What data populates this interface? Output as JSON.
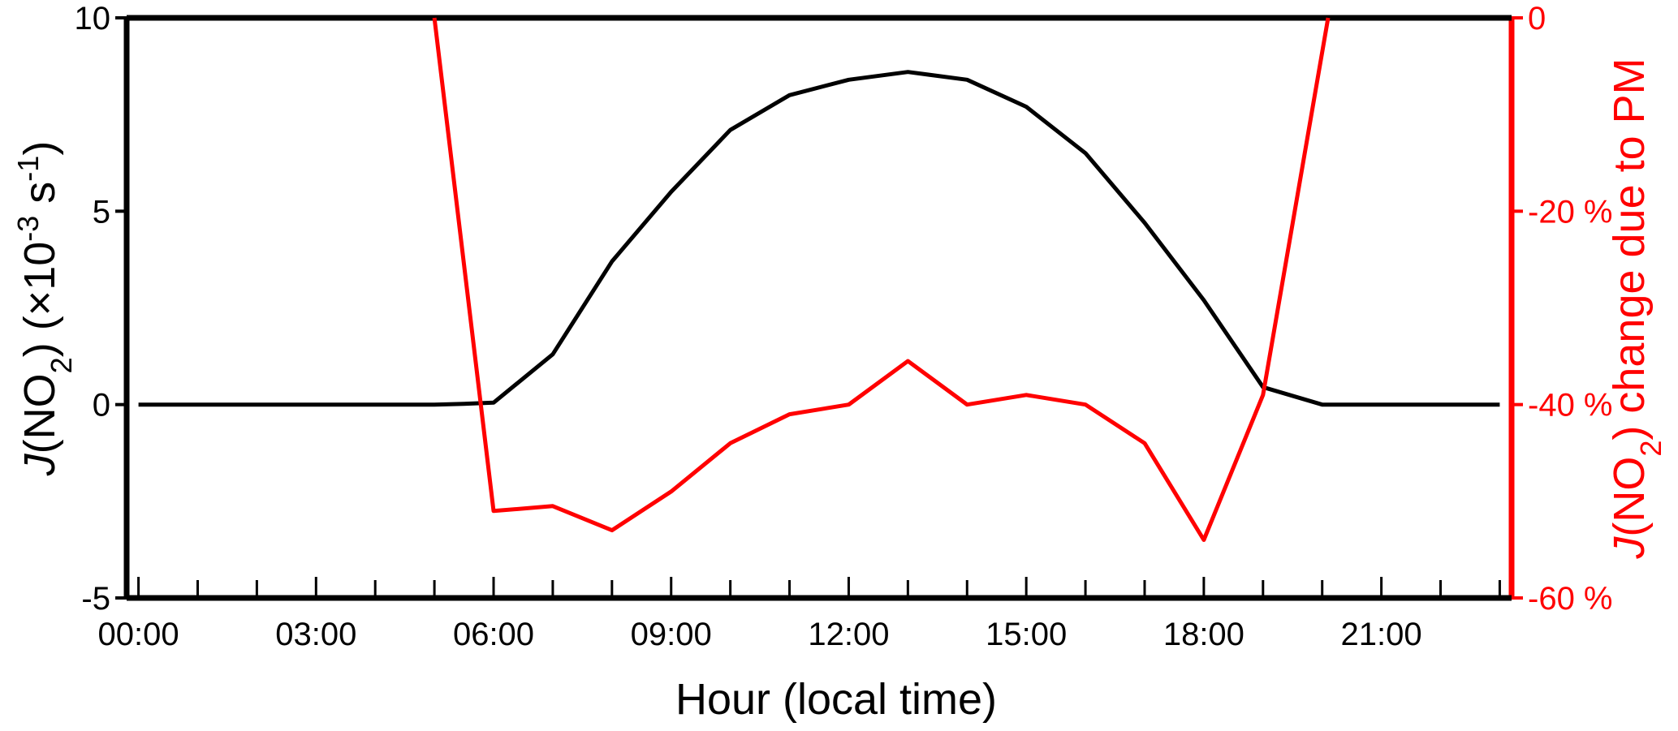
{
  "chart_data": {
    "type": "line",
    "title": "",
    "xlabel": "Hour (local time)",
    "ylabel_left": {
      "italic": "J",
      "main": "(NO",
      "sub": "2",
      "rest": ") (×10",
      "sup1": "-3",
      "rest2": " s",
      "sup2": "-1",
      "end": ")"
    },
    "ylabel_right": {
      "italic": "J",
      "main": "(NO",
      "sub": "2",
      "rest": ") change due to PM"
    },
    "x_ticks": [
      "00:00",
      "03:00",
      "06:00",
      "09:00",
      "12:00",
      "15:00",
      "18:00",
      "21:00"
    ],
    "x_tick_values": [
      0,
      3,
      6,
      9,
      12,
      15,
      18,
      21
    ],
    "xlim": [
      -0.2,
      23.2
    ],
    "ylim_left": [
      -5,
      10
    ],
    "yticks_left": [
      -5,
      0,
      5,
      10
    ],
    "ylim_right": [
      -60,
      0
    ],
    "yticks_right": [
      {
        "value": -60,
        "label": "-60 %"
      },
      {
        "value": -40,
        "label": "-40 %"
      },
      {
        "value": -20,
        "label": "-20 %"
      },
      {
        "value": 0,
        "label": "0"
      }
    ],
    "grid": false,
    "series": [
      {
        "axis": "left",
        "color": "#000000",
        "x": [
          0,
          1,
          2,
          3,
          4,
          5,
          5.5,
          6,
          7,
          8,
          9,
          10,
          11,
          12,
          13,
          14,
          15,
          16,
          17,
          18,
          19,
          20,
          21,
          22,
          23
        ],
        "y": [
          0,
          0,
          0,
          0,
          0,
          0,
          0.02,
          0.05,
          1.3,
          3.7,
          5.5,
          7.1,
          8.0,
          8.4,
          8.6,
          8.4,
          7.7,
          6.5,
          4.7,
          2.7,
          0.45,
          0.0,
          0,
          0,
          0
        ]
      },
      {
        "axis": "right",
        "color": "#ff0000",
        "x": [
          5.0,
          6,
          7,
          8,
          9,
          10,
          11,
          12,
          13,
          14,
          15,
          16,
          17,
          18,
          19,
          20.1
        ],
        "y": [
          0,
          -51,
          -50.5,
          -53,
          -49,
          -44,
          -41,
          -40,
          -35.5,
          -40,
          -39,
          -40,
          -44,
          -54,
          -39,
          0
        ]
      }
    ]
  }
}
